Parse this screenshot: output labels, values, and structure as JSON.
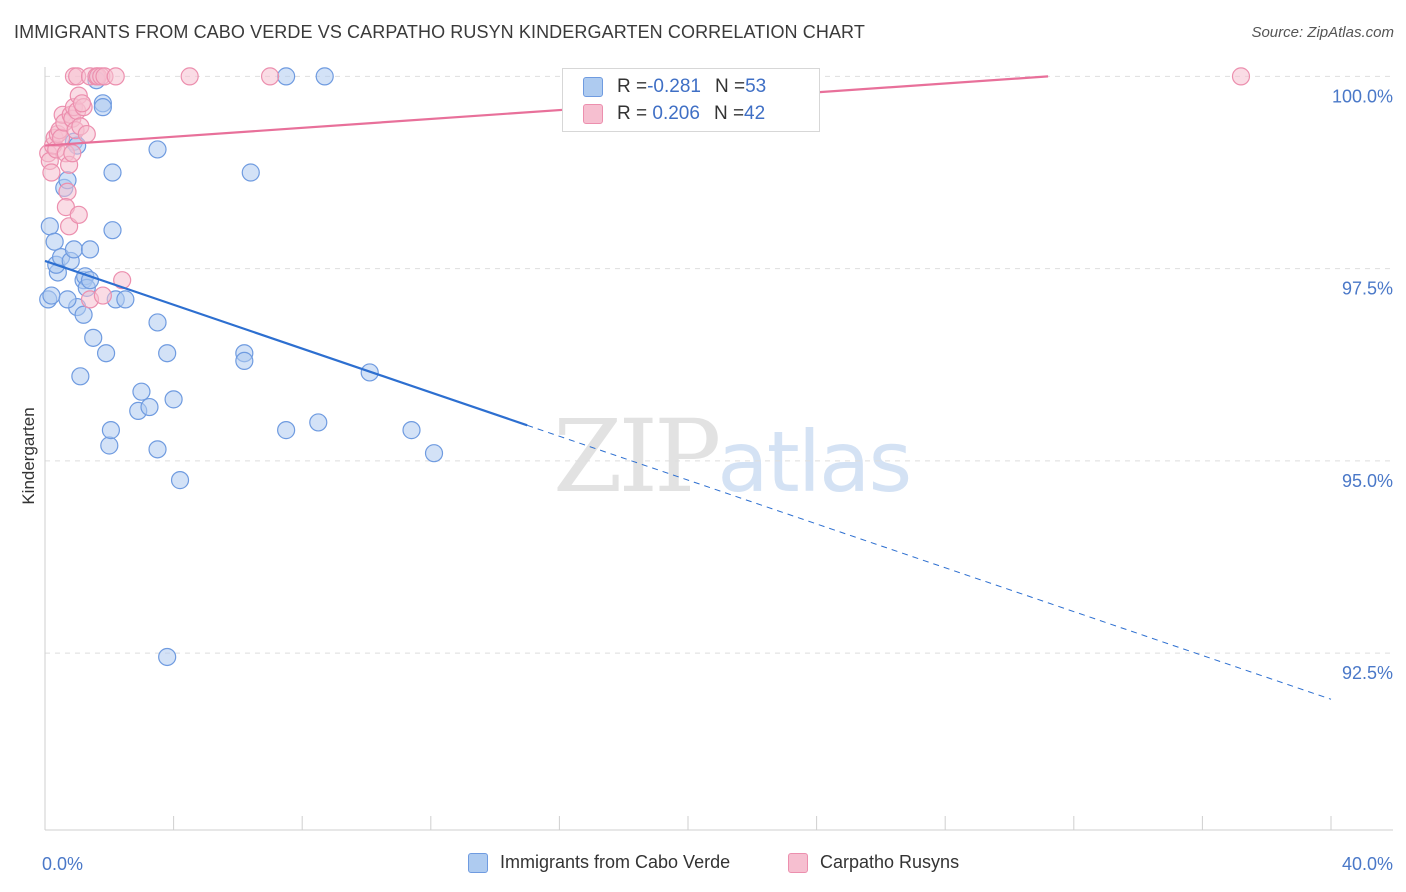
{
  "header": {
    "title": "IMMIGRANTS FROM CABO VERDE VS CARPATHO RUSYN KINDERGARTEN CORRELATION CHART",
    "source": "Source: ZipAtlas.com"
  },
  "watermark": {
    "zip": "ZIP",
    "atlas": "atlas"
  },
  "legend": {
    "rows": [
      {
        "r_label": "R = ",
        "r_value": "-0.281",
        "n_label": "N = ",
        "n_value": "53"
      },
      {
        "r_label": "R = ",
        "r_value": " 0.206",
        "n_label": "N = ",
        "n_value": "42"
      }
    ]
  },
  "bottom_legend": {
    "series1": "Immigrants from Cabo Verde",
    "series2": "Carpatho Rusyns"
  },
  "colors": {
    "blue_fill": "#aecbf0",
    "blue_stroke": "#6f9be0",
    "blue_line": "#2d6fd0",
    "pink_fill": "#f6bfd0",
    "pink_stroke": "#ec8fae",
    "pink_line": "#e8709a",
    "grid": "#dedede",
    "tick_text": "#4a78c8"
  },
  "chart_data": {
    "type": "scatter",
    "title": "IMMIGRANTS FROM CABO VERDE VS CARPATHO RUSYN KINDERGARTEN CORRELATION CHART",
    "xlabel": "",
    "ylabel": "Kindergarten",
    "xlim": [
      0,
      40
    ],
    "ylim": [
      90.2,
      100.2
    ],
    "x_tick_labels": [
      {
        "value": 0,
        "label": "0.0%"
      },
      {
        "value": 40,
        "label": "40.0%"
      }
    ],
    "y_tick_labels": [
      {
        "value": 100,
        "label": "100.0%"
      },
      {
        "value": 97.5,
        "label": "97.5%"
      },
      {
        "value": 95,
        "label": "95.0%"
      },
      {
        "value": 92.5,
        "label": "92.5%"
      }
    ],
    "series": [
      {
        "name": "Immigrants from Cabo Verde",
        "color": "#aecbf0",
        "r": -0.281,
        "n": 53,
        "trend": {
          "x_start": 0,
          "y_start": 97.6,
          "x_solid_end": 15.0,
          "x_end": 40,
          "y_end": 91.9
        },
        "points": [
          [
            0.1,
            97.1
          ],
          [
            0.2,
            97.15
          ],
          [
            0.15,
            98.05
          ],
          [
            0.3,
            97.85
          ],
          [
            0.4,
            97.45
          ],
          [
            0.35,
            97.55
          ],
          [
            0.5,
            97.65
          ],
          [
            0.6,
            98.55
          ],
          [
            0.7,
            98.65
          ],
          [
            0.9,
            99.15
          ],
          [
            1.0,
            99.1
          ],
          [
            0.8,
            97.6
          ],
          [
            0.9,
            97.75
          ],
          [
            1.0,
            97.0
          ],
          [
            1.2,
            97.35
          ],
          [
            1.25,
            97.4
          ],
          [
            1.3,
            97.25
          ],
          [
            1.4,
            97.35
          ],
          [
            1.4,
            97.75
          ],
          [
            0.7,
            97.1
          ],
          [
            1.2,
            96.9
          ],
          [
            1.5,
            96.6
          ],
          [
            1.9,
            96.4
          ],
          [
            1.1,
            96.1
          ],
          [
            2.1,
            98.0
          ],
          [
            2.2,
            97.1
          ],
          [
            2.5,
            97.1
          ],
          [
            1.6,
            99.95
          ],
          [
            1.8,
            99.65
          ],
          [
            1.8,
            99.6
          ],
          [
            2.1,
            98.75
          ],
          [
            3.5,
            99.05
          ],
          [
            3.5,
            96.8
          ],
          [
            3.8,
            96.4
          ],
          [
            3.0,
            95.9
          ],
          [
            2.9,
            95.65
          ],
          [
            3.25,
            95.7
          ],
          [
            4.0,
            95.8
          ],
          [
            2.0,
            95.2
          ],
          [
            2.05,
            95.4
          ],
          [
            3.5,
            95.15
          ],
          [
            4.2,
            94.75
          ],
          [
            6.2,
            96.4
          ],
          [
            6.2,
            96.3
          ],
          [
            6.4,
            98.75
          ],
          [
            7.5,
            100.0
          ],
          [
            8.7,
            100.0
          ],
          [
            7.5,
            95.4
          ],
          [
            8.5,
            95.5
          ],
          [
            10.1,
            96.15
          ],
          [
            11.4,
            95.4
          ],
          [
            12.1,
            95.1
          ],
          [
            3.8,
            92.45
          ]
        ]
      },
      {
        "name": "Carpatho Rusyns",
        "color": "#f6bfd0",
        "r": 0.206,
        "n": 42,
        "trend": {
          "x_start": 0,
          "y_start": 99.1,
          "x_end": 31.2,
          "y_end": 100.0
        },
        "points": [
          [
            0.1,
            99.0
          ],
          [
            0.15,
            98.9
          ],
          [
            0.2,
            98.75
          ],
          [
            0.25,
            99.1
          ],
          [
            0.3,
            99.2
          ],
          [
            0.35,
            99.05
          ],
          [
            0.4,
            99.25
          ],
          [
            0.45,
            99.3
          ],
          [
            0.5,
            99.2
          ],
          [
            0.55,
            99.5
          ],
          [
            0.6,
            99.4
          ],
          [
            0.65,
            99.0
          ],
          [
            0.7,
            98.5
          ],
          [
            0.8,
            99.5
          ],
          [
            0.85,
            99.45
          ],
          [
            0.9,
            99.6
          ],
          [
            0.95,
            99.3
          ],
          [
            1.0,
            99.55
          ],
          [
            1.05,
            99.75
          ],
          [
            1.1,
            99.35
          ],
          [
            1.2,
            99.6
          ],
          [
            0.65,
            98.3
          ],
          [
            0.75,
            98.05
          ],
          [
            1.05,
            98.2
          ],
          [
            0.75,
            98.85
          ],
          [
            0.85,
            99.0
          ],
          [
            0.9,
            100.0
          ],
          [
            1.0,
            100.0
          ],
          [
            1.4,
            100.0
          ],
          [
            1.6,
            100.0
          ],
          [
            1.65,
            100.0
          ],
          [
            1.75,
            100.0
          ],
          [
            1.85,
            100.0
          ],
          [
            2.2,
            100.0
          ],
          [
            4.5,
            100.0
          ],
          [
            7.0,
            100.0
          ],
          [
            1.3,
            99.25
          ],
          [
            1.4,
            97.1
          ],
          [
            1.8,
            97.15
          ],
          [
            2.4,
            97.35
          ],
          [
            37.2,
            100.0
          ],
          [
            1.15,
            99.65
          ]
        ]
      }
    ]
  }
}
